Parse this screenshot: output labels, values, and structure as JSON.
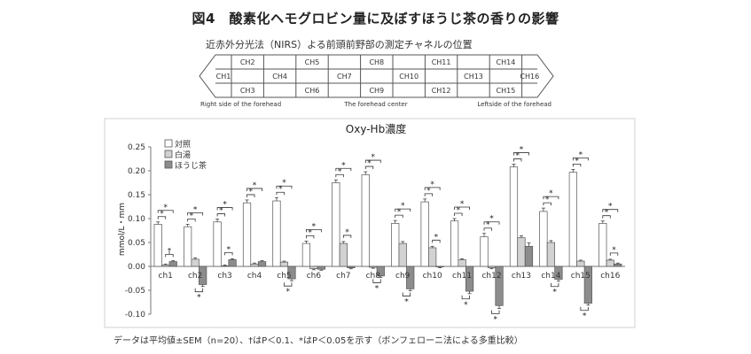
{
  "figure": {
    "title": "図4　酸素化ヘモグロビン量に及ぼすほうじ茶の香りの影響",
    "nirs_heading": "近赤外分光法（NIRS）よる前頭前野部の測定チャネルの位置",
    "footnote": "データは平均値±SEM（n=20）、†はP＜0.1、*はP＜0.05を示す（ボンフェローニ法による多重比較）"
  },
  "channel_map": {
    "row_top": [
      "CH2",
      "CH5",
      "CH8",
      "CH11",
      "CH14"
    ],
    "row_mid": [
      "CH1",
      "CH4",
      "CH7",
      "CH10",
      "CH13",
      "CH16"
    ],
    "row_bot": [
      "CH3",
      "CH6",
      "CH9",
      "CH12",
      "CH15"
    ],
    "left_label": "Right side of the forehead",
    "center_label": "The forehead center",
    "right_label": "Leftside of the forehead"
  },
  "chart_data": {
    "type": "bar",
    "title": "Oxy-Hb濃度",
    "ylabel": "mmol/L・mm",
    "xlabel": "",
    "ylim": [
      -0.1,
      0.25
    ],
    "yticks": [
      "0.25",
      "0.20",
      "0.15",
      "0.10",
      "0.05",
      "0.00",
      "-0.05",
      "-0.10"
    ],
    "legend_position": "top-left",
    "grid": false,
    "categories": [
      "ch1",
      "ch2",
      "ch3",
      "ch4",
      "ch5",
      "ch6",
      "ch7",
      "ch8",
      "ch9",
      "ch10",
      "ch11",
      "ch12",
      "ch13",
      "ch14",
      "ch15",
      "ch16"
    ],
    "series": [
      {
        "name": "対照",
        "color": "#ffffff",
        "values": [
          0.088,
          0.083,
          0.093,
          0.133,
          0.137,
          0.048,
          0.175,
          0.192,
          0.09,
          0.135,
          0.095,
          0.062,
          0.208,
          0.115,
          0.197,
          0.09
        ],
        "errors": [
          0.005,
          0.005,
          0.006,
          0.006,
          0.007,
          0.005,
          0.006,
          0.006,
          0.006,
          0.006,
          0.005,
          0.007,
          0.006,
          0.007,
          0.006,
          0.005
        ]
      },
      {
        "name": "白湯",
        "color": "#d2d2d2",
        "values": [
          0.003,
          0.015,
          0.001,
          0.005,
          0.009,
          -0.005,
          0.048,
          -0.002,
          0.048,
          0.039,
          0.014,
          -0.003,
          0.06,
          0.05,
          0.011,
          0.013
        ],
        "errors": [
          0.002,
          0.003,
          0.002,
          0.002,
          0.002,
          0.002,
          0.004,
          0.002,
          0.004,
          0.003,
          0.002,
          0.002,
          0.004,
          0.004,
          0.002,
          0.002
        ]
      },
      {
        "name": "ほうじ茶",
        "color": "#8c8c8c",
        "values": [
          0.01,
          -0.038,
          0.014,
          0.01,
          -0.026,
          -0.006,
          -0.003,
          -0.02,
          -0.047,
          -0.001,
          -0.052,
          -0.082,
          0.042,
          -0.027,
          -0.077,
          0.005
        ],
        "errors": [
          0.002,
          0.004,
          0.002,
          0.002,
          0.004,
          0.002,
          0.002,
          0.003,
          0.004,
          0.002,
          0.005,
          0.006,
          0.007,
          0.004,
          0.004,
          0.002
        ]
      }
    ],
    "significance": [
      {
        "category": "ch1",
        "pairs": [
          [
            "対照",
            "白湯",
            "*"
          ],
          [
            "対照",
            "ほうじ茶",
            "*"
          ],
          [
            "白湯",
            "ほうじ茶",
            "†"
          ]
        ]
      },
      {
        "category": "ch2",
        "pairs": [
          [
            "対照",
            "白湯",
            "*"
          ],
          [
            "対照",
            "ほうじ茶",
            "*"
          ],
          [
            "白湯",
            "ほうじ茶",
            "*"
          ]
        ]
      },
      {
        "category": "ch3",
        "pairs": [
          [
            "対照",
            "白湯",
            "*"
          ],
          [
            "対照",
            "ほうじ茶",
            "*"
          ],
          [
            "白湯",
            "ほうじ茶",
            "*"
          ]
        ]
      },
      {
        "category": "ch4",
        "pairs": [
          [
            "対照",
            "白湯",
            "*"
          ],
          [
            "対照",
            "ほうじ茶",
            "*"
          ]
        ]
      },
      {
        "category": "ch5",
        "pairs": [
          [
            "対照",
            "白湯",
            "*"
          ],
          [
            "対照",
            "ほうじ茶",
            "*"
          ],
          [
            "白湯",
            "ほうじ茶",
            "*"
          ]
        ]
      },
      {
        "category": "ch6",
        "pairs": [
          [
            "対照",
            "白湯",
            "*"
          ],
          [
            "対照",
            "ほうじ茶",
            "*"
          ]
        ]
      },
      {
        "category": "ch7",
        "pairs": [
          [
            "対照",
            "白湯",
            "*"
          ],
          [
            "対照",
            "ほうじ茶",
            "*"
          ],
          [
            "白湯",
            "ほうじ茶",
            "*"
          ]
        ]
      },
      {
        "category": "ch8",
        "pairs": [
          [
            "対照",
            "白湯",
            "*"
          ],
          [
            "対照",
            "ほうじ茶",
            "*"
          ],
          [
            "白湯",
            "ほうじ茶",
            "*"
          ]
        ]
      },
      {
        "category": "ch9",
        "pairs": [
          [
            "対照",
            "白湯",
            "*"
          ],
          [
            "対照",
            "ほうじ茶",
            "*"
          ],
          [
            "白湯",
            "ほうじ茶",
            "*"
          ]
        ]
      },
      {
        "category": "ch10",
        "pairs": [
          [
            "対照",
            "白湯",
            "*"
          ],
          [
            "対照",
            "ほうじ茶",
            "*"
          ],
          [
            "白湯",
            "ほうじ茶",
            "*"
          ]
        ]
      },
      {
        "category": "ch11",
        "pairs": [
          [
            "対照",
            "白湯",
            "*"
          ],
          [
            "対照",
            "ほうじ茶",
            "*"
          ],
          [
            "白湯",
            "ほうじ茶",
            "*"
          ]
        ]
      },
      {
        "category": "ch12",
        "pairs": [
          [
            "対照",
            "白湯",
            "*"
          ],
          [
            "対照",
            "ほうじ茶",
            "*"
          ],
          [
            "白湯",
            "ほうじ茶",
            "*"
          ]
        ]
      },
      {
        "category": "ch13",
        "pairs": [
          [
            "対照",
            "白湯",
            "*"
          ],
          [
            "対照",
            "ほうじ茶",
            "*"
          ]
        ]
      },
      {
        "category": "ch14",
        "pairs": [
          [
            "対照",
            "白湯",
            "*"
          ],
          [
            "対照",
            "ほうじ茶",
            "*"
          ],
          [
            "白湯",
            "ほうじ茶",
            "*"
          ]
        ]
      },
      {
        "category": "ch15",
        "pairs": [
          [
            "対照",
            "白湯",
            "*"
          ],
          [
            "対照",
            "ほうじ茶",
            "*"
          ],
          [
            "白湯",
            "ほうじ茶",
            "*"
          ]
        ]
      },
      {
        "category": "ch16",
        "pairs": [
          [
            "対照",
            "白湯",
            "*"
          ],
          [
            "対照",
            "ほうじ茶",
            "*"
          ],
          [
            "白湯",
            "ほうじ茶",
            "*"
          ]
        ]
      }
    ]
  }
}
